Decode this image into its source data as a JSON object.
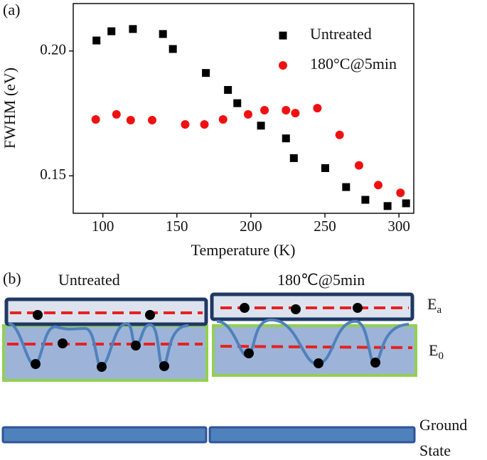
{
  "chart_data": {
    "type": "scatter",
    "panel_label": "(a)",
    "x_label": "Temperature (K)",
    "y_label": "FWHM (eV)",
    "xlim": [
      80,
      310
    ],
    "ylim": [
      0.135,
      0.219
    ],
    "xticks": [
      100,
      150,
      200,
      250,
      300
    ],
    "yticks": [
      {
        "value": 0.15,
        "label": "0.15"
      },
      {
        "value": 0.2,
        "label": "0.20"
      }
    ],
    "legend": "top-right",
    "series": [
      {
        "name": "Untreated",
        "color": "#000000",
        "marker": "square",
        "x": [
          95.7,
          105.8,
          120.3,
          140.6,
          147.3,
          169.6,
          184.5,
          190.8,
          206.8,
          223.7,
          229.0,
          250.2,
          264.3,
          277.3,
          292.3,
          304.8
        ],
        "values": [
          0.2042,
          0.2079,
          0.2088,
          0.2068,
          0.2008,
          0.1912,
          0.1844,
          0.1791,
          0.1701,
          0.165,
          0.1571,
          0.1531,
          0.1455,
          0.1404,
          0.1379,
          0.139
        ]
      },
      {
        "name": "180°C@5min",
        "color": "#ee1111",
        "marker": "circle",
        "x": [
          95.2,
          109.2,
          118.8,
          133.3,
          155.6,
          168.6,
          181.2,
          198.1,
          209.2,
          223.7,
          230.0,
          244.9,
          259.9,
          273.0,
          286.0,
          301.0
        ],
        "values": [
          0.1726,
          0.1746,
          0.1723,
          0.1723,
          0.1706,
          0.1706,
          0.1726,
          0.1746,
          0.1763,
          0.1763,
          0.1751,
          0.1771,
          0.1664,
          0.1542,
          0.1463,
          0.1432
        ]
      }
    ]
  },
  "diagram": {
    "panel_label": "(b)",
    "left_title": "Untreated",
    "right_title": "180℃@5min",
    "upper_level": {
      "main": "E",
      "sub": "a"
    },
    "lower_level": {
      "main": "E",
      "sub": "0"
    },
    "ground_state": [
      "Ground",
      "State"
    ]
  }
}
